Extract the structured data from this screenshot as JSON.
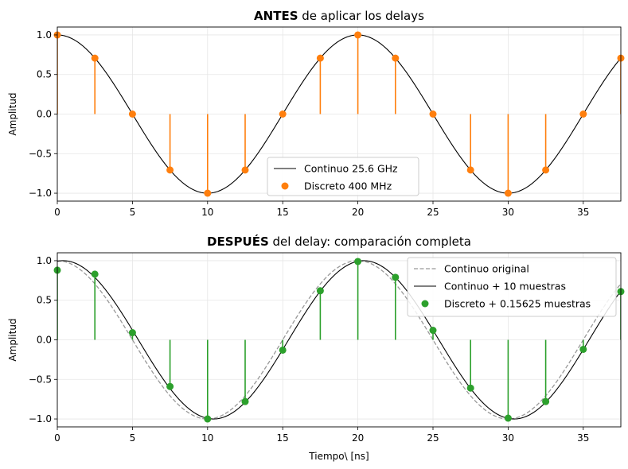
{
  "chart_data": [
    {
      "type": "line",
      "title_bold": "ANTES",
      "title_rest": " de aplicar los delays",
      "xlabel": "",
      "ylabel": "Amplitud",
      "xlim": [
        0,
        37.5
      ],
      "ylim": [
        -1.1,
        1.1
      ],
      "xticks": [
        0,
        5,
        10,
        15,
        20,
        25,
        30,
        35
      ],
      "yticks": [
        -1.0,
        -0.5,
        0.0,
        0.5,
        1.0
      ],
      "ytick_labels": [
        "−1.0",
        "−0.5",
        "0.0",
        "0.5",
        "1.0"
      ],
      "grid": true,
      "legend_position": "lower center",
      "series": [
        {
          "name": "Continuo 25.6 GHz",
          "kind": "line",
          "color": "#000000",
          "function": "cos",
          "period": 20,
          "delay": 0
        },
        {
          "name": "Discreto 400 MHz",
          "kind": "stem",
          "color": "#ff7f0e",
          "x": [
            0,
            2.5,
            5,
            7.5,
            10,
            12.5,
            15,
            17.5,
            20,
            22.5,
            25,
            27.5,
            30,
            32.5,
            35,
            37.5
          ],
          "y": [
            1.0,
            0.707,
            0.0,
            -0.707,
            -1.0,
            -0.707,
            0.0,
            0.707,
            1.0,
            0.707,
            0.0,
            -0.707,
            -1.0,
            -0.707,
            0.0,
            0.707
          ]
        }
      ]
    },
    {
      "type": "line",
      "title_bold": "DESPUÉS",
      "title_rest": " del delay: comparación completa",
      "xlabel": "Tiempo\\ [ns]",
      "ylabel": "Amplitud",
      "xlim": [
        0,
        37.5
      ],
      "ylim": [
        -1.1,
        1.1
      ],
      "xticks": [
        0,
        5,
        10,
        15,
        20,
        25,
        30,
        35
      ],
      "yticks": [
        -1.0,
        -0.5,
        0.0,
        0.5,
        1.0
      ],
      "ytick_labels": [
        "−1.0",
        "−0.5",
        "0.0",
        "0.5",
        "1.0"
      ],
      "grid": true,
      "legend_position": "upper right",
      "series": [
        {
          "name": "Continuo original",
          "kind": "dashed",
          "color": "#999999",
          "function": "cos",
          "period": 20,
          "delay": 0
        },
        {
          "name": "Continuo $+$ 10 muestras",
          "display_name": "Continuo + 10 muestras",
          "kind": "line",
          "color": "#000000",
          "function": "cos",
          "period": 20,
          "delay": 0.390625
        },
        {
          "name": "Discreto $+$ 0.15625 muestras",
          "display_name": "Discreto + 0.15625 muestras",
          "kind": "stem",
          "color": "#2ca02c",
          "x": [
            0,
            2.5,
            5,
            7.5,
            10,
            12.5,
            15,
            17.5,
            20,
            22.5,
            25,
            27.5,
            30,
            32.5,
            35,
            37.5
          ],
          "y": [
            0.88,
            0.83,
            0.09,
            -0.59,
            -1.0,
            -0.78,
            -0.13,
            0.62,
            0.99,
            0.79,
            0.12,
            -0.61,
            -0.99,
            -0.78,
            -0.12,
            0.61
          ]
        }
      ]
    }
  ]
}
